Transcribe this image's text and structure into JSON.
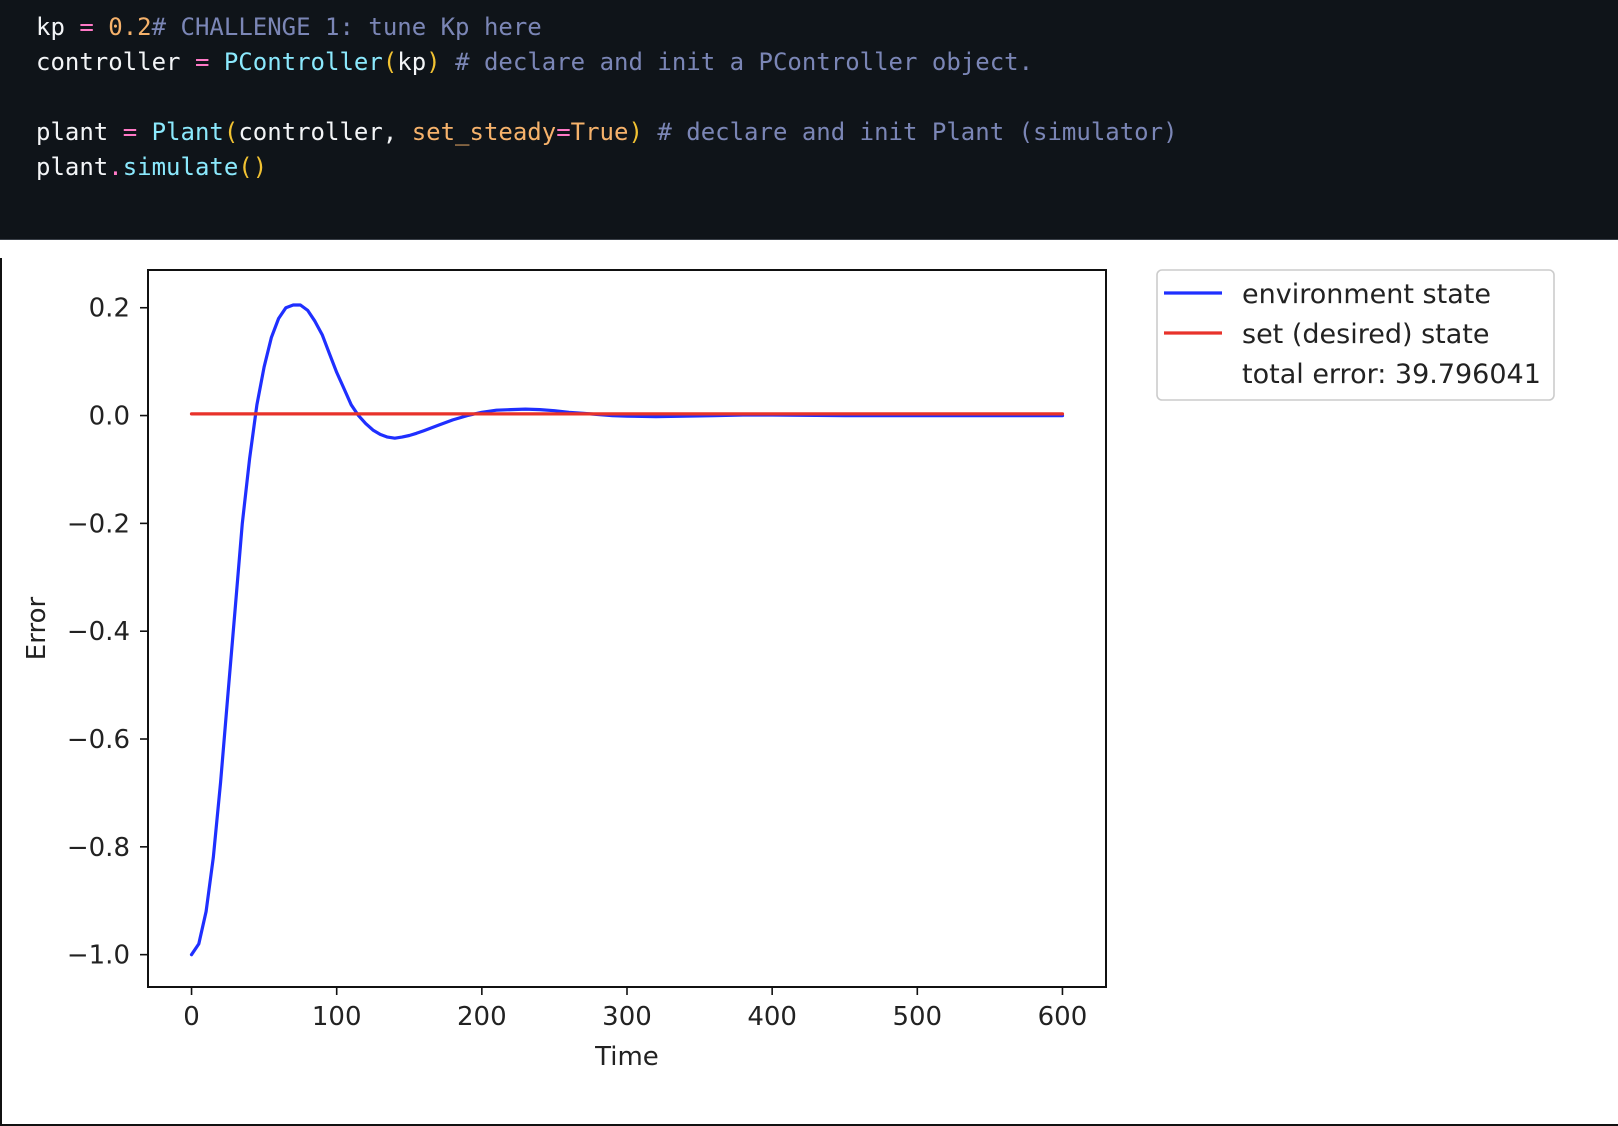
{
  "code": {
    "lines": [
      [
        {
          "text": "kp",
          "cls": "tok-var"
        },
        {
          "text": " = ",
          "cls": "tok-op"
        },
        {
          "text": "0.2",
          "cls": "tok-num"
        },
        {
          "text": "# CHALLENGE 1: tune Kp here",
          "cls": "tok-com"
        }
      ],
      [
        {
          "text": "controller",
          "cls": "tok-var"
        },
        {
          "text": " = ",
          "cls": "tok-op"
        },
        {
          "text": "PController",
          "cls": "tok-fn"
        },
        {
          "text": "(",
          "cls": "tok-paren"
        },
        {
          "text": "kp",
          "cls": "tok-var"
        },
        {
          "text": ")",
          "cls": "tok-paren"
        },
        {
          "text": " # declare and init a PController object.",
          "cls": "tok-com"
        }
      ],
      [],
      [
        {
          "text": "plant",
          "cls": "tok-var"
        },
        {
          "text": " = ",
          "cls": "tok-op"
        },
        {
          "text": "Plant",
          "cls": "tok-fn"
        },
        {
          "text": "(",
          "cls": "tok-paren"
        },
        {
          "text": "controller, ",
          "cls": "tok-var"
        },
        {
          "text": "set_steady",
          "cls": "tok-kw"
        },
        {
          "text": "=",
          "cls": "tok-op"
        },
        {
          "text": "True",
          "cls": "tok-kw"
        },
        {
          "text": ")",
          "cls": "tok-paren"
        },
        {
          "text": " # declare and init Plant (simulator)",
          "cls": "tok-com"
        }
      ],
      [
        {
          "text": "plant",
          "cls": "tok-var"
        },
        {
          "text": ".",
          "cls": "tok-op"
        },
        {
          "text": "simulate",
          "cls": "tok-fn"
        },
        {
          "text": "()",
          "cls": "tok-paren"
        }
      ]
    ]
  },
  "chart_data": {
    "type": "line",
    "title": "",
    "xlabel": "Time",
    "ylabel": "Error",
    "xlim": [
      -30,
      630
    ],
    "ylim": [
      -1.06,
      0.27
    ],
    "xticks": [
      0,
      100,
      200,
      300,
      400,
      500,
      600
    ],
    "yticks": [
      -1.0,
      -0.8,
      -0.6,
      -0.4,
      -0.2,
      0.0,
      0.2
    ],
    "ytick_labels": [
      "−1.0",
      "−0.8",
      "−0.6",
      "−0.4",
      "−0.2",
      "0.0",
      "0.2"
    ],
    "xtick_labels": [
      "0",
      "100",
      "200",
      "300",
      "400",
      "500",
      "600"
    ],
    "grid": false,
    "legend_position": "outside top-right",
    "series": [
      {
        "name": "environment state",
        "color": "#1f2fff",
        "x": [
          0,
          5,
          10,
          15,
          20,
          25,
          30,
          35,
          40,
          45,
          50,
          55,
          60,
          65,
          70,
          75,
          80,
          85,
          90,
          95,
          100,
          105,
          110,
          115,
          120,
          125,
          130,
          135,
          140,
          145,
          150,
          155,
          160,
          170,
          180,
          190,
          200,
          210,
          220,
          230,
          240,
          250,
          260,
          270,
          280,
          290,
          300,
          320,
          340,
          360,
          380,
          400,
          450,
          500,
          550,
          600
        ],
        "y": [
          -1.0,
          -0.98,
          -0.92,
          -0.82,
          -0.68,
          -0.52,
          -0.36,
          -0.2,
          -0.08,
          0.02,
          0.09,
          0.145,
          0.18,
          0.2,
          0.205,
          0.205,
          0.195,
          0.175,
          0.15,
          0.115,
          0.08,
          0.05,
          0.02,
          0.0,
          -0.015,
          -0.027,
          -0.035,
          -0.04,
          -0.042,
          -0.04,
          -0.037,
          -0.033,
          -0.028,
          -0.018,
          -0.008,
          0.0,
          0.006,
          0.01,
          0.011,
          0.012,
          0.011,
          0.009,
          0.006,
          0.004,
          0.002,
          0.0,
          -0.001,
          -0.002,
          -0.001,
          0.0,
          0.001,
          0.001,
          0.0,
          0.0,
          0.0,
          0.0
        ]
      },
      {
        "name": "set (desired) state",
        "color": "#e8322a",
        "x": [
          0,
          600
        ],
        "y": [
          0.003,
          0.003
        ]
      }
    ],
    "legend_extra": "total error: 39.796041"
  }
}
